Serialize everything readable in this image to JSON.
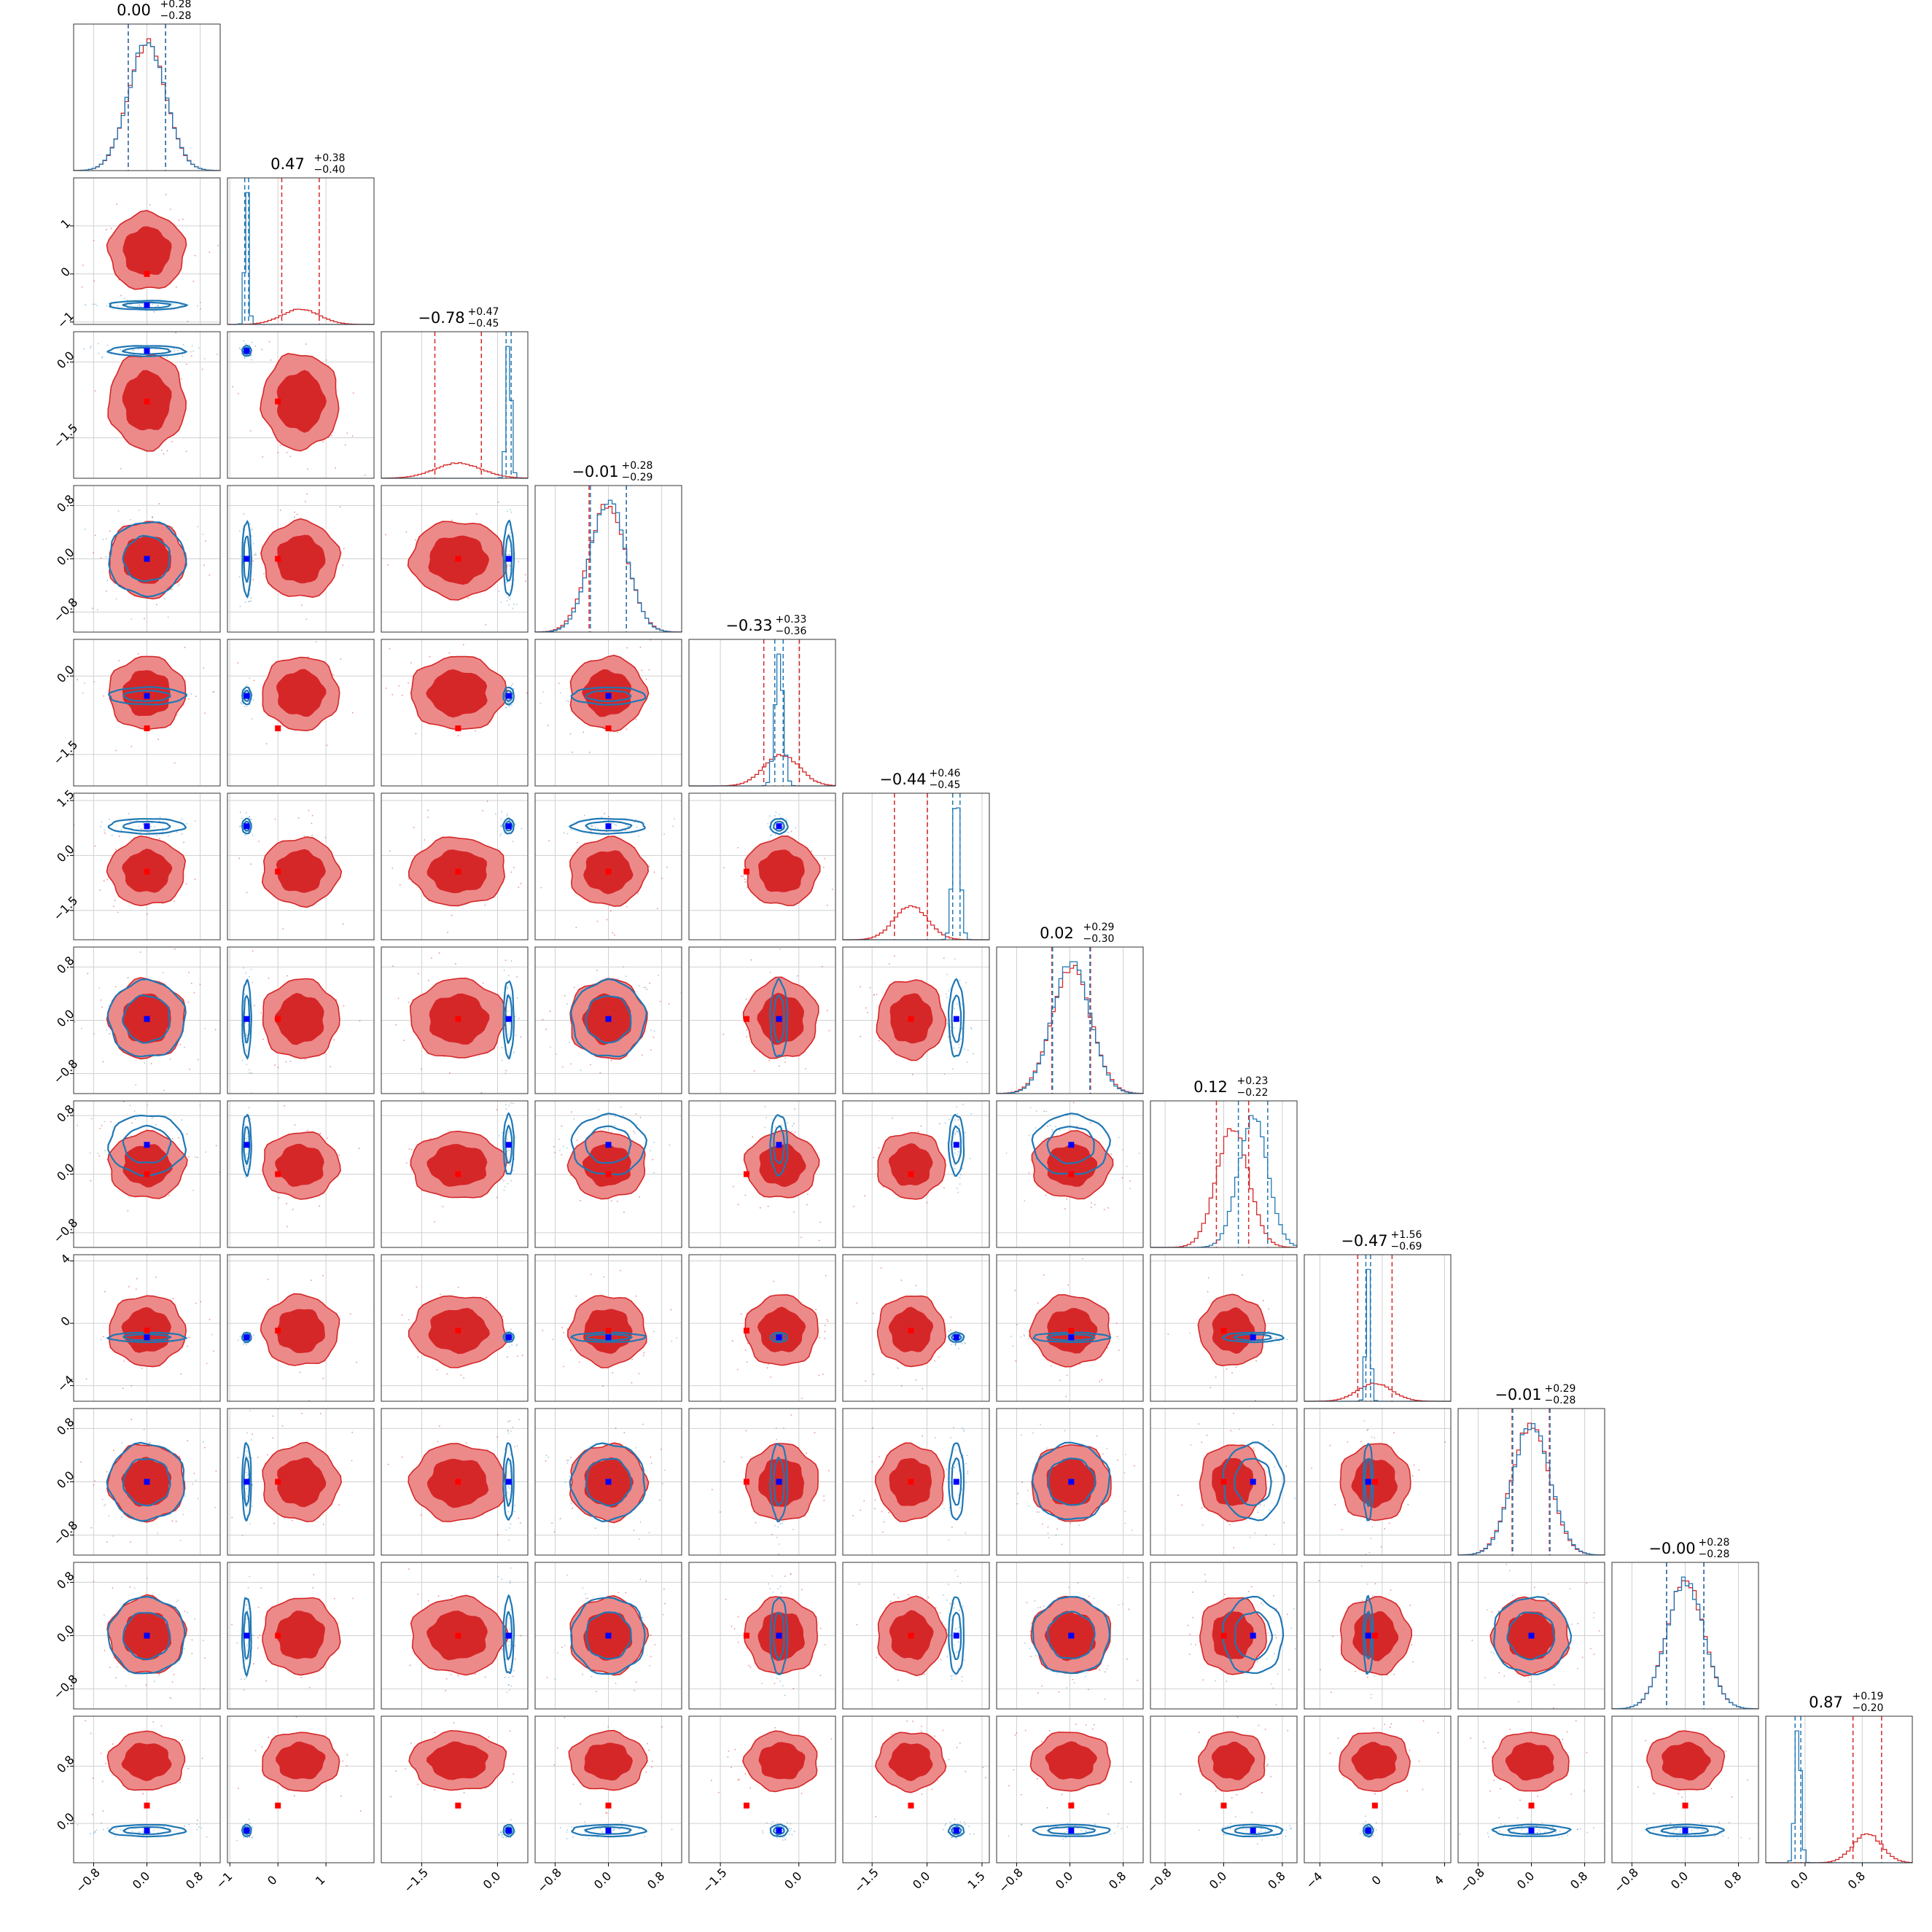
{
  "chart_data": {
    "type": "scatter",
    "kind": "corner",
    "n_params": 12,
    "title": "",
    "grid": true,
    "colors": {
      "red": "#d62728",
      "red_fill": "#ec8a8a",
      "blue": "#1f77b4",
      "truth_red": "#ff0000",
      "truth_blue": "#0000ff"
    },
    "titles": [
      {
        "center": "0.00",
        "plus": "+0.28",
        "minus": "−0.28"
      },
      {
        "center": "0.47",
        "plus": "+0.38",
        "minus": "−0.40"
      },
      {
        "center": "−0.78",
        "plus": "+0.47",
        "minus": "−0.45"
      },
      {
        "center": "−0.01",
        "plus": "+0.28",
        "minus": "−0.29"
      },
      {
        "center": "−0.33",
        "plus": "+0.33",
        "minus": "−0.36"
      },
      {
        "center": "−0.44",
        "plus": "+0.46",
        "minus": "−0.45"
      },
      {
        "center": "0.02",
        "plus": "+0.29",
        "minus": "−0.30"
      },
      {
        "center": "0.12",
        "plus": "+0.23",
        "minus": "−0.22"
      },
      {
        "center": "−0.47",
        "plus": "+1.56",
        "minus": "−0.69"
      },
      {
        "center": "−0.01",
        "plus": "+0.29",
        "minus": "−0.28"
      },
      {
        "center": "−0.00",
        "plus": "+0.28",
        "minus": "−0.28"
      },
      {
        "center": "0.87",
        "plus": "+0.19",
        "minus": "−0.20"
      }
    ],
    "params": [
      {
        "range": [
          -1.1,
          1.1
        ],
        "ticks": [
          -0.8,
          0.0,
          0.8
        ],
        "tick_labels": [
          "−0.8",
          "0.0",
          "0.8"
        ],
        "red": {
          "mu": 0.0,
          "sd": 0.28
        },
        "blue": {
          "mu": 0.0,
          "sd": 0.28
        },
        "truth_red": 0.0,
        "truth_blue": 0.0
      },
      {
        "range": [
          -1.05,
          2.0
        ],
        "ticks": [
          -1,
          0,
          1
        ],
        "tick_labels": [
          "−1",
          "0",
          "1"
        ],
        "red": {
          "mu": 0.47,
          "sd": 0.39
        },
        "blue": {
          "mu": -0.65,
          "sd": 0.04
        },
        "truth_red": 0.0,
        "truth_blue": -0.65
      },
      {
        "range": [
          -2.3,
          0.6
        ],
        "ticks": [
          -1.5,
          0.0
        ],
        "tick_labels": [
          "−1.5",
          "0.0"
        ],
        "red": {
          "mu": -0.78,
          "sd": 0.46
        },
        "blue": {
          "mu": 0.22,
          "sd": 0.05
        },
        "truth_red": -0.78,
        "truth_blue": 0.22
      },
      {
        "range": [
          -1.1,
          1.1
        ],
        "ticks": [
          -0.8,
          0.0,
          0.8
        ],
        "tick_labels": [
          "−0.8",
          "0.0",
          "0.8"
        ],
        "red": {
          "mu": -0.01,
          "sd": 0.28
        },
        "blue": {
          "mu": 0.0,
          "sd": 0.27
        },
        "truth_red": 0.0,
        "truth_blue": 0.0
      },
      {
        "range": [
          -2.1,
          0.7
        ],
        "ticks": [
          -1.5,
          0.0
        ],
        "tick_labels": [
          "−1.5",
          "0.0"
        ],
        "red": {
          "mu": -0.33,
          "sd": 0.34
        },
        "blue": {
          "mu": -0.38,
          "sd": 0.08
        },
        "truth_red": -1.0,
        "truth_blue": -0.38
      },
      {
        "range": [
          -2.3,
          1.7
        ],
        "ticks": [
          -1.5,
          0.0,
          1.5
        ],
        "tick_labels": [
          "−1.5",
          "0.0",
          "1.5"
        ],
        "red": {
          "mu": -0.44,
          "sd": 0.45
        },
        "blue": {
          "mu": 0.8,
          "sd": 0.1
        },
        "truth_red": -0.44,
        "truth_blue": 0.8
      },
      {
        "range": [
          -1.1,
          1.1
        ],
        "ticks": [
          -0.8,
          0.0,
          0.8
        ],
        "tick_labels": [
          "−0.8",
          "0.0",
          "0.8"
        ],
        "red": {
          "mu": 0.02,
          "sd": 0.29
        },
        "blue": {
          "mu": 0.02,
          "sd": 0.28
        },
        "truth_red": 0.02,
        "truth_blue": 0.02
      },
      {
        "range": [
          -1.0,
          1.0
        ],
        "ticks": [
          -0.8,
          0.0,
          0.8
        ],
        "tick_labels": [
          "−0.8",
          "0.0",
          "0.8"
        ],
        "red": {
          "mu": 0.12,
          "sd": 0.22
        },
        "blue": {
          "mu": 0.4,
          "sd": 0.2
        },
        "truth_red": 0.0,
        "truth_blue": 0.4
      },
      {
        "range": [
          -5.0,
          4.4
        ],
        "ticks": [
          -4,
          0,
          4
        ],
        "tick_labels": [
          "−4",
          "0",
          "4"
        ],
        "red": {
          "mu": -0.47,
          "sd": 1.1
        },
        "blue": {
          "mu": -0.9,
          "sd": 0.15
        },
        "truth_red": -0.47,
        "truth_blue": -0.9
      },
      {
        "range": [
          -1.1,
          1.1
        ],
        "ticks": [
          -0.8,
          0.0,
          0.8
        ],
        "tick_labels": [
          "−0.8",
          "0.0",
          "0.8"
        ],
        "red": {
          "mu": -0.01,
          "sd": 0.28
        },
        "blue": {
          "mu": 0.0,
          "sd": 0.28
        },
        "truth_red": 0.0,
        "truth_blue": 0.0
      },
      {
        "range": [
          -1.1,
          1.1
        ],
        "ticks": [
          -0.8,
          0.0,
          0.8
        ],
        "tick_labels": [
          "−0.8",
          "0.0",
          "0.8"
        ],
        "red": {
          "mu": 0.0,
          "sd": 0.28
        },
        "blue": {
          "mu": 0.0,
          "sd": 0.28
        },
        "truth_red": 0.0,
        "truth_blue": 0.0
      },
      {
        "range": [
          -0.55,
          1.5
        ],
        "ticks": [
          -0.8,
          0.0,
          0.8
        ],
        "tick_labels": [
          "−0.8",
          "0.0",
          "0.8"
        ],
        "red": {
          "mu": 0.87,
          "sd": 0.2
        },
        "blue": {
          "mu": -0.1,
          "sd": 0.04
        },
        "truth_red": 0.25,
        "truth_blue": -0.1
      }
    ]
  }
}
